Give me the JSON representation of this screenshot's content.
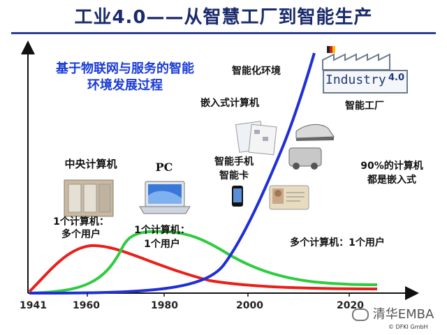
{
  "title": "工业4.0——从智慧工厂到智能生产",
  "subtitle_line1": "基于物联网与服务的智能",
  "subtitle_line2": "环境发展过程",
  "labels": {
    "intelligent_env": "智能化环境",
    "embedded_computer": "嵌入式计算机",
    "smart_factory": "智能工厂",
    "mainframe": "中央计算机",
    "pc": "PC",
    "smartphone_line1": "智能手机",
    "smartphone_line2": "智能卡",
    "embedded90_line1": "90%的计算机",
    "embedded90_line2": "都是嵌入式",
    "one_many_line1": "1个计算机：",
    "one_many_line2": "多个用户",
    "one_one_line1": "1个计算机：",
    "one_one_line2": "1个用户",
    "many_one": "多个计算机：1个用户"
  },
  "axis_ticks": [
    "1941",
    "1960",
    "1980",
    "2000",
    "2020"
  ],
  "logo": {
    "text": "Industry",
    "version": "4.0"
  },
  "footer": {
    "copyright": "© DFKI GmbH",
    "wechat": "清华EMBA"
  },
  "colors": {
    "red_curve": "#e8201a",
    "green_curve": "#2ecc40",
    "blue_curve": "#1f2fd6",
    "title": "#1a2a6c"
  }
}
